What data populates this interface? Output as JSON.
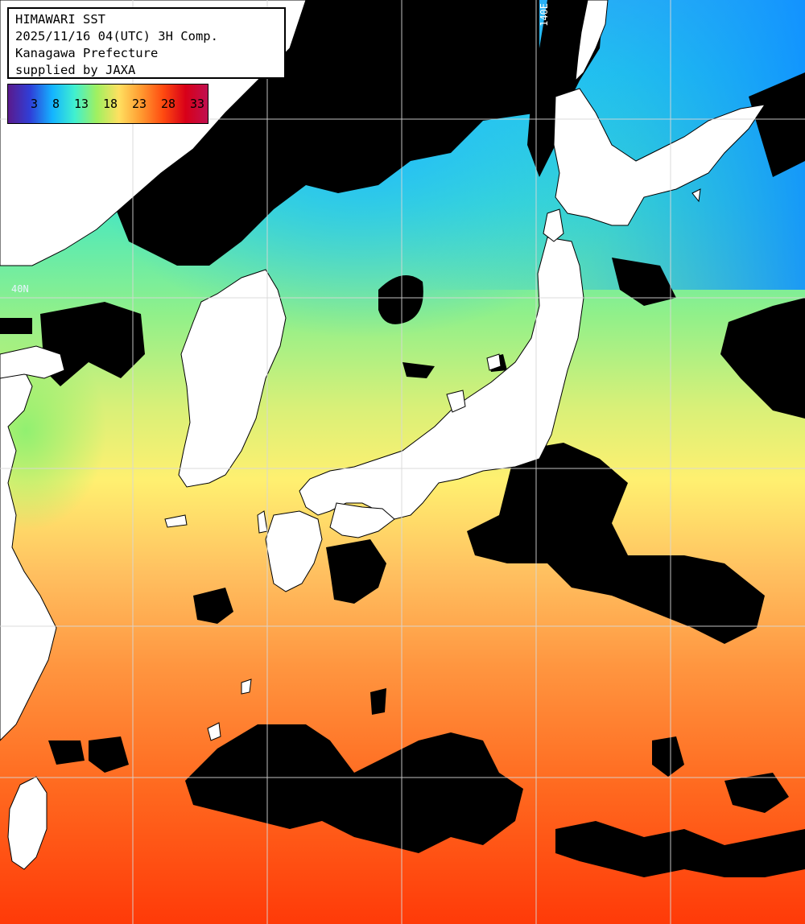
{
  "header": {
    "line1": "HIMAWARI SST",
    "line2": "2025/11/16 04(UTC) 3H Comp.",
    "line3": "Kanagawa Prefecture",
    "line4": "supplied by JAXA"
  },
  "legend": {
    "ticks": [
      "3",
      "8",
      "13",
      "18",
      "23",
      "28",
      "33"
    ],
    "colors": [
      "#5a1a8c",
      "#2f3fd8",
      "#14b4ff",
      "#40f0d0",
      "#a0f060",
      "#ffe060",
      "#ff9a30",
      "#ff4a10",
      "#d80018",
      "#c01050"
    ]
  },
  "grid": {
    "lon_label": "140E",
    "lat_label": "40N"
  },
  "colors": {
    "land": "#ffffff",
    "cloud": "#000000",
    "grid": "#d8d8d8"
  }
}
